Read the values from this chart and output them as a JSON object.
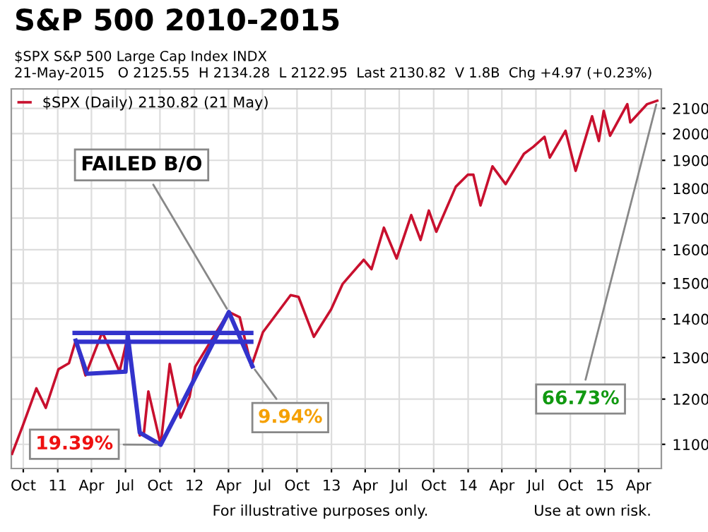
{
  "chart_data": {
    "type": "line",
    "title": "S&P 500 2010-2015",
    "subtitle": "$SPX S&P 500 Large Cap Index INDX\n21-May-2015   O 2125.55  H 2134.28  L 2122.95  Last 2130.82  V 1.8B  Chg +4.97 (+0.23%)",
    "log": "y",
    "grid": true,
    "legend": "top left",
    "marker": "none",
    "line_style": "solid",
    "xlim": [
      "2010-08-30",
      "2015-06-01"
    ],
    "xticks": [
      {
        "value": "2010-10-01",
        "label": "Oct"
      },
      {
        "value": "2011-01-01",
        "label": "11"
      },
      {
        "value": "2011-04-01",
        "label": "Apr"
      },
      {
        "value": "2011-07-01",
        "label": "Jul"
      },
      {
        "value": "2011-10-01",
        "label": "Oct"
      },
      {
        "value": "2012-01-01",
        "label": "12"
      },
      {
        "value": "2012-04-01",
        "label": "Apr"
      },
      {
        "value": "2012-07-01",
        "label": "Jul"
      },
      {
        "value": "2012-10-01",
        "label": "Oct"
      },
      {
        "value": "2013-01-01",
        "label": "13"
      },
      {
        "value": "2013-04-01",
        "label": "Apr"
      },
      {
        "value": "2013-07-01",
        "label": "Jul"
      },
      {
        "value": "2013-10-01",
        "label": "Oct"
      },
      {
        "value": "2014-01-01",
        "label": "14"
      },
      {
        "value": "2014-04-01",
        "label": "Apr"
      },
      {
        "value": "2014-07-01",
        "label": "Jul"
      },
      {
        "value": "2014-10-01",
        "label": "Oct"
      },
      {
        "value": "2015-01-01",
        "label": "15"
      },
      {
        "value": "2015-04-01",
        "label": "Apr"
      }
    ],
    "ylim": [
      1050,
      2180
    ],
    "yticks": [
      1100,
      1200,
      1300,
      1400,
      1500,
      1600,
      1700,
      1800,
      1900,
      2000,
      2100
    ],
    "series": [
      {
        "name": "$SPX (Daily) 2130.82 (21 May)",
        "color": "#c8102e",
        "x": [
          "2010-09-01",
          "2010-09-30",
          "2010-11-05",
          "2010-11-30",
          "2011-01-03",
          "2011-01-31",
          "2011-02-18",
          "2011-03-16",
          "2011-04-29",
          "2011-05-02",
          "2011-06-15",
          "2011-07-07",
          "2011-08-08",
          "2011-08-19",
          "2011-08-31",
          "2011-10-03",
          "2011-10-27",
          "2011-11-25",
          "2011-12-19",
          "2012-01-03",
          "2012-02-29",
          "2012-04-02",
          "2012-05-01",
          "2012-06-01",
          "2012-07-02",
          "2012-09-14",
          "2012-10-05",
          "2012-11-15",
          "2012-12-31",
          "2013-01-31",
          "2013-03-28",
          "2013-04-18",
          "2013-05-21",
          "2013-06-24",
          "2013-08-02",
          "2013-08-27",
          "2013-09-18",
          "2013-10-08",
          "2013-11-29",
          "2013-12-31",
          "2014-01-15",
          "2014-02-03",
          "2014-03-07",
          "2014-04-11",
          "2014-05-30",
          "2014-06-24",
          "2014-07-24",
          "2014-08-07",
          "2014-09-18",
          "2014-10-15",
          "2014-11-28",
          "2014-12-16",
          "2014-12-29",
          "2015-01-15",
          "2015-03-02",
          "2015-03-10",
          "2015-04-24",
          "2015-05-21"
        ],
        "values": [
          1080,
          1141,
          1225,
          1180,
          1271,
          1286,
          1343,
          1256,
          1363,
          1361,
          1265,
          1353,
          1119,
          1123,
          1218,
          1099,
          1284,
          1158,
          1205,
          1277,
          1366,
          1419,
          1405,
          1278,
          1365,
          1466,
          1461,
          1353,
          1426,
          1498,
          1569,
          1541,
          1669,
          1573,
          1710,
          1630,
          1725,
          1656,
          1806,
          1848,
          1848,
          1742,
          1878,
          1815,
          1924,
          1950,
          1988,
          1910,
          2011,
          1862,
          2068,
          1972,
          2090,
          1992,
          2117,
          2044,
          2117,
          2131
        ]
      },
      {
        "color": "#3333cc",
        "x": [
          "2011-02-18",
          "2011-03-20",
          "2011-07-01",
          "2011-07-07",
          "2011-08-08",
          "2011-10-03",
          "2012-04-02",
          "2012-06-04"
        ],
        "values": [
          1343,
          1260,
          1265,
          1356,
          1125,
          1099,
          1419,
          1278
        ]
      },
      {
        "color": "#3333cc",
        "x": [
          "2011-02-15",
          "2012-06-01"
        ],
        "values": [
          1363,
          1363
        ]
      },
      {
        "color": "#3333cc",
        "x": [
          "2011-02-25",
          "2012-06-01"
        ],
        "values": [
          1340,
          1340
        ]
      }
    ],
    "annotations": [
      {
        "text": "FAILED B/O",
        "x": "2012-04-02",
        "y": 1419
      },
      {
        "text": "19.39%",
        "x": "2011-10-03",
        "y": 1099
      },
      {
        "text": "9.94%",
        "x": "2012-06-04",
        "y": 1278
      },
      {
        "text": "66.73%",
        "x": "2015-05-21",
        "y": 2131
      },
      "For illustrative purposes only.",
      "Use at own risk."
    ]
  }
}
